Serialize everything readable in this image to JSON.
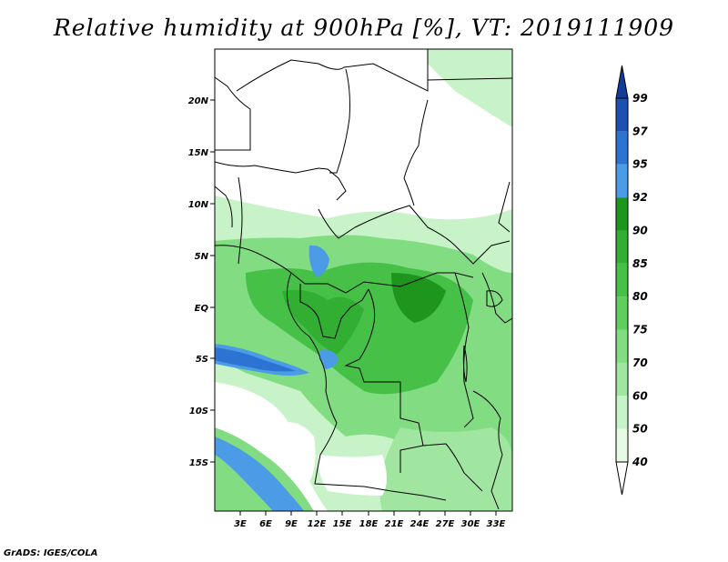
{
  "title": "Relative humidity at 900hPa [%], VT: 2019111909",
  "credit": "GrADS: IGES/COLA",
  "map": {
    "lat_ticks": [
      "20N",
      "15N",
      "10N",
      "5N",
      "EQ",
      "5S",
      "10S",
      "15S"
    ],
    "lon_ticks": [
      "3E",
      "6E",
      "9E",
      "12E",
      "15E",
      "18E",
      "21E",
      "24E",
      "27E",
      "30E",
      "33E"
    ]
  },
  "colorbar": {
    "levels": [
      "40",
      "50",
      "60",
      "70",
      "75",
      "80",
      "85",
      "90",
      "92",
      "95",
      "97",
      "99"
    ],
    "colors": [
      "#ffffff",
      "#e6fae6",
      "#c8f2c8",
      "#a0e6a0",
      "#82dc82",
      "#5fce5f",
      "#46c046",
      "#32af32",
      "#1e961e",
      "#4b9be6",
      "#2d73d2",
      "#1e50b4",
      "#123c96"
    ]
  }
}
